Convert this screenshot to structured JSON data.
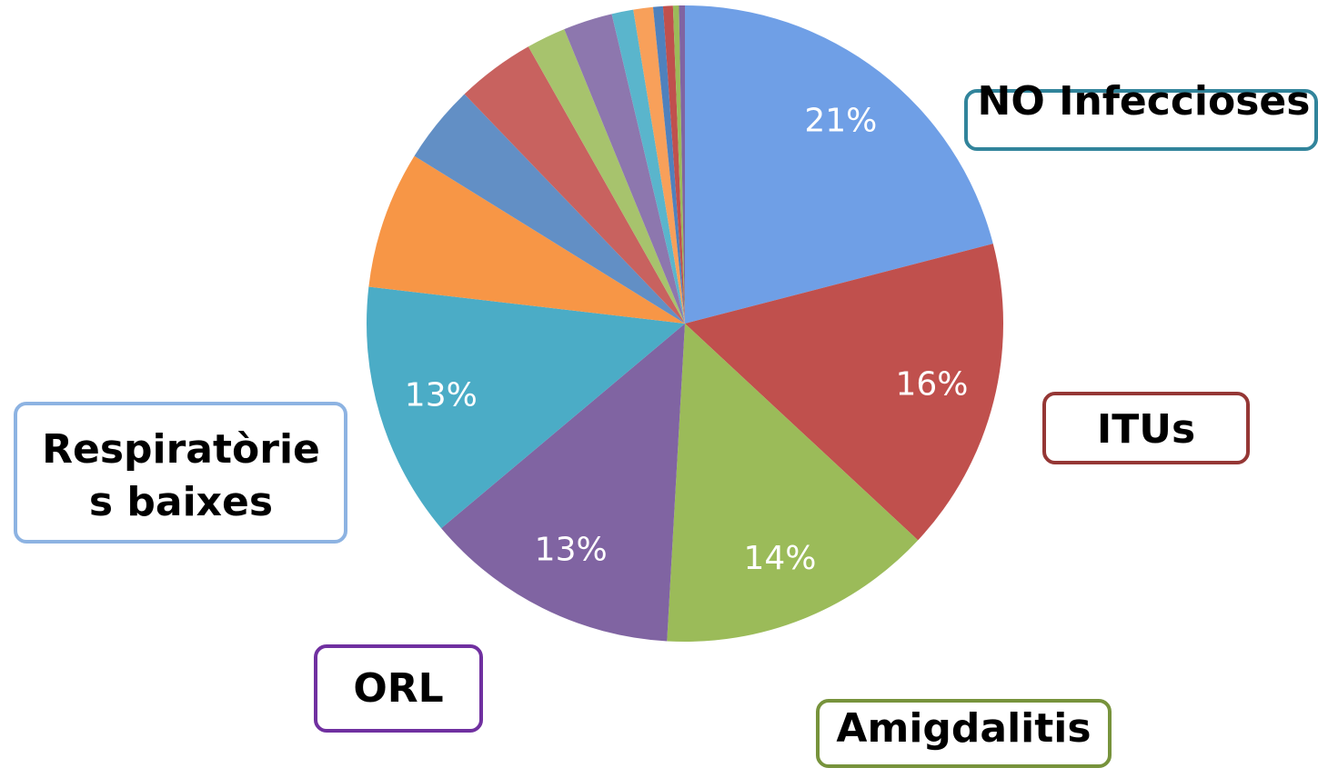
{
  "chart_data": {
    "type": "pie",
    "categories": [
      "NO Infeccioses",
      "ITUs",
      "Amigdalitis",
      "ORL",
      "Respiratòries baixes",
      null,
      null,
      null,
      null,
      null,
      null,
      null,
      null,
      null,
      null,
      null
    ],
    "values": [
      21,
      16,
      14,
      13,
      13,
      7,
      4,
      4,
      2,
      2.5,
      1.1,
      1,
      0.5,
      0.5,
      0.3,
      0.3
    ],
    "value_labels": [
      "21%",
      "16%",
      "14%",
      "13%",
      "13%",
      null,
      null,
      null,
      null,
      null,
      null,
      null,
      null,
      null,
      null,
      null
    ],
    "colors": [
      "#6f9fe6",
      "#c0504d",
      "#9bbb59",
      "#8064a2",
      "#4bacc6",
      "#f79646",
      "#628fc5",
      "#c8625f",
      "#a7c36d",
      "#8d77ae",
      "#5ab5cc",
      "#f8a05a",
      "#4f81bd",
      "#c0504d",
      "#9bbb59",
      "#8064a2"
    ],
    "label_colors": [
      "#31849b",
      "#953735",
      "#77933c",
      "#7030a0",
      "#8db3e2"
    ]
  }
}
